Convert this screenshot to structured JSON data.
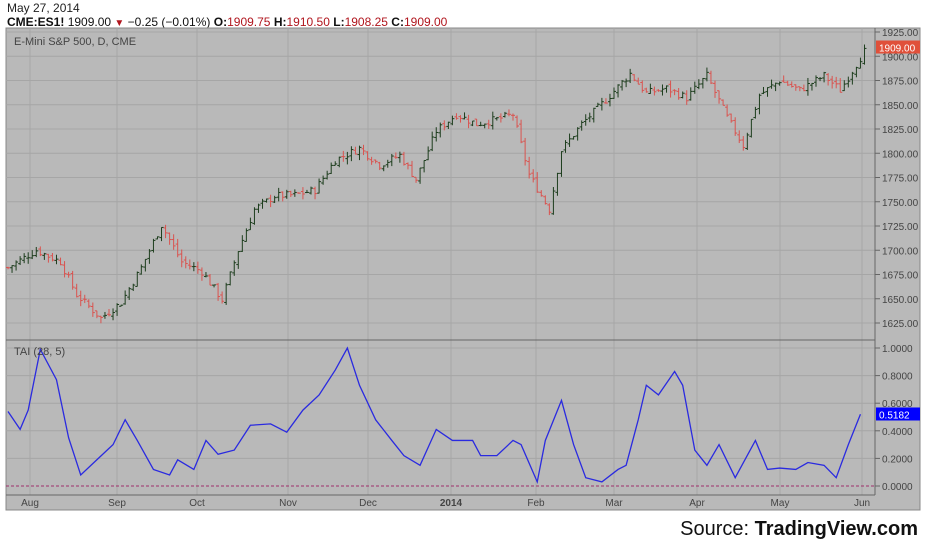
{
  "header": {
    "date": "May 27, 2014",
    "symbol": "CME:ES1!",
    "last": "1909.00",
    "change": "−0.25 (−0.01%)",
    "open_label": "O:",
    "open": "1909.75",
    "high_label": "H:",
    "high": "1910.50",
    "low_label": "L:",
    "low": "1908.25",
    "close_label": "C:",
    "close": "1909.00",
    "down_icon": "triangle-down-icon"
  },
  "source": {
    "prefix": "Source: ",
    "brand": "TradingView.com"
  },
  "colors": {
    "panel": "#b9b9b9",
    "grid": "#a6a6a6",
    "up": "#1d3d1d",
    "down": "#d9534f",
    "indicator": "#2a2ae0",
    "last_price_bg": "#e0503a",
    "last_ind_bg": "#0000ff",
    "zero_line": "#a0306a"
  },
  "chart_data": [
    {
      "type": "ohlc",
      "title": "E-Mini S&P 500, D, CME",
      "ylim": [
        1612,
        1930
      ],
      "yticks": [
        "1925.00",
        "1900.00",
        "1875.00",
        "1850.00",
        "1825.00",
        "1800.00",
        "1775.00",
        "1750.00",
        "1725.00",
        "1700.00",
        "1675.00",
        "1650.00",
        "1625.00"
      ],
      "last_value_label": "1909.00",
      "close_anchors": [
        [
          0,
          1682
        ],
        [
          7,
          1700
        ],
        [
          13,
          1688
        ],
        [
          17,
          1654
        ],
        [
          23,
          1630
        ],
        [
          28,
          1646
        ],
        [
          33,
          1682
        ],
        [
          38,
          1726
        ],
        [
          43,
          1688
        ],
        [
          48,
          1678
        ],
        [
          53,
          1649
        ],
        [
          57,
          1700
        ],
        [
          61,
          1742
        ],
        [
          66,
          1756
        ],
        [
          71,
          1757
        ],
        [
          76,
          1762
        ],
        [
          81,
          1793
        ],
        [
          87,
          1805
        ],
        [
          92,
          1788
        ],
        [
          97,
          1798
        ],
        [
          101,
          1773
        ],
        [
          106,
          1823
        ],
        [
          111,
          1840
        ],
        [
          116,
          1830
        ],
        [
          121,
          1835
        ],
        [
          125,
          1840
        ],
        [
          129,
          1778
        ],
        [
          134,
          1742
        ],
        [
          137,
          1803
        ],
        [
          142,
          1830
        ],
        [
          148,
          1855
        ],
        [
          154,
          1882
        ],
        [
          158,
          1862
        ],
        [
          163,
          1867
        ],
        [
          168,
          1857
        ],
        [
          173,
          1880
        ],
        [
          178,
          1837
        ],
        [
          182,
          1808
        ],
        [
          186,
          1860
        ],
        [
          191,
          1875
        ],
        [
          196,
          1865
        ],
        [
          202,
          1880
        ],
        [
          206,
          1865
        ],
        [
          212,
          1905
        ]
      ]
    },
    {
      "type": "line",
      "title": "TAI (28, 5)",
      "ylim": [
        -0.06,
        1.06
      ],
      "yticks": [
        "1.0000",
        "0.8000",
        "0.6000",
        "0.4000",
        "0.2000",
        "0.0000"
      ],
      "last_value_label": "0.5182",
      "x_labels": [
        "Aug",
        "Sep",
        "Oct",
        "Nov",
        "Dec",
        "2014",
        "Feb",
        "Mar",
        "Apr",
        "May",
        "Jun"
      ],
      "points": [
        [
          0,
          0.54
        ],
        [
          3,
          0.41
        ],
        [
          5,
          0.55
        ],
        [
          8,
          0.99
        ],
        [
          12,
          0.77
        ],
        [
          15,
          0.35
        ],
        [
          18,
          0.08
        ],
        [
          22,
          0.19
        ],
        [
          26,
          0.3
        ],
        [
          29,
          0.48
        ],
        [
          32,
          0.33
        ],
        [
          36,
          0.12
        ],
        [
          40,
          0.08
        ],
        [
          42,
          0.19
        ],
        [
          46,
          0.12
        ],
        [
          49,
          0.33
        ],
        [
          52,
          0.23
        ],
        [
          56,
          0.26
        ],
        [
          60,
          0.44
        ],
        [
          65,
          0.45
        ],
        [
          69,
          0.39
        ],
        [
          73,
          0.55
        ],
        [
          77,
          0.66
        ],
        [
          81,
          0.84
        ],
        [
          84,
          1.0
        ],
        [
          87,
          0.73
        ],
        [
          91,
          0.48
        ],
        [
          95,
          0.33
        ],
        [
          98,
          0.22
        ],
        [
          102,
          0.15
        ],
        [
          106,
          0.41
        ],
        [
          110,
          0.33
        ],
        [
          115,
          0.33
        ],
        [
          117,
          0.22
        ],
        [
          121,
          0.22
        ],
        [
          125,
          0.33
        ],
        [
          127,
          0.3
        ],
        [
          131,
          0.03
        ],
        [
          133,
          0.33
        ],
        [
          137,
          0.62
        ],
        [
          140,
          0.3
        ],
        [
          143,
          0.06
        ],
        [
          147,
          0.03
        ],
        [
          151,
          0.12
        ],
        [
          153,
          0.15
        ],
        [
          156,
          0.48
        ],
        [
          158,
          0.73
        ],
        [
          161,
          0.66
        ],
        [
          165,
          0.83
        ],
        [
          167,
          0.73
        ],
        [
          170,
          0.26
        ],
        [
          173,
          0.15
        ],
        [
          176,
          0.3
        ],
        [
          180,
          0.06
        ],
        [
          185,
          0.33
        ],
        [
          188,
          0.12
        ],
        [
          191,
          0.13
        ],
        [
          195,
          0.12
        ],
        [
          198,
          0.17
        ],
        [
          202,
          0.15
        ],
        [
          205,
          0.06
        ],
        [
          208,
          0.3
        ],
        [
          211,
          0.52
        ]
      ]
    }
  ]
}
